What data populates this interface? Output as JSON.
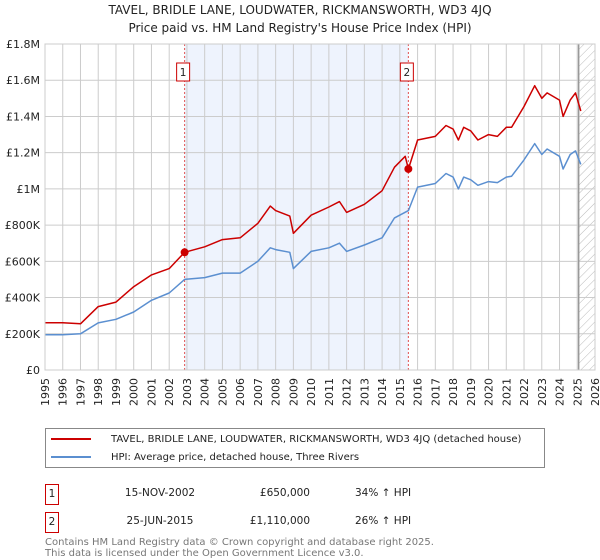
{
  "title": "TAVEL, BRIDLE LANE, LOUDWATER, RICKMANSWORTH, WD3 4JQ",
  "subtitle": "Price paid vs. HM Land Registry's House Price Index (HPI)",
  "colors": {
    "price": "#cc0000",
    "hpi": "#5b8fd0",
    "shade": "#eef3fd",
    "grid": "#cccccc"
  },
  "chart_data": {
    "type": "line",
    "xlim": [
      1995,
      2026
    ],
    "ylim": [
      0,
      1800000
    ],
    "y_ticks": [
      0,
      200000,
      400000,
      600000,
      800000,
      1000000,
      1200000,
      1400000,
      1600000,
      1800000
    ],
    "y_tick_labels": [
      "£0",
      "£200K",
      "£400K",
      "£600K",
      "£800K",
      "£1M",
      "£1.2M",
      "£1.4M",
      "£1.6M",
      "£1.8M"
    ],
    "x_tick_labels": [
      "1995",
      "1996",
      "1997",
      "1998",
      "1999",
      "2000",
      "2001",
      "2002",
      "2003",
      "2004",
      "2005",
      "2006",
      "2007",
      "2008",
      "2009",
      "2010",
      "2011",
      "2012",
      "2013",
      "2014",
      "2015",
      "2016",
      "2017",
      "2018",
      "2019",
      "2020",
      "2021",
      "2022",
      "2023",
      "2024",
      "2025",
      "2026"
    ],
    "grid": true,
    "shaded_range": [
      2002.87,
      2015.48
    ],
    "hatched_from": 2025.08,
    "series": [
      {
        "name": "TAVEL, BRIDLE LANE, LOUDWATER, RICKMANSWORTH, WD3 4JQ (detached house)",
        "x": [
          1995,
          1996,
          1997,
          1998,
          1999,
          2000,
          2001,
          2002,
          2002.87,
          2004,
          2005,
          2006,
          2007,
          2007.7,
          2008,
          2008.8,
          2009,
          2010,
          2011,
          2011.6,
          2012,
          2013,
          2014,
          2014.7,
          2015.3,
          2015.48,
          2016,
          2017,
          2017.6,
          2018,
          2018.3,
          2018.6,
          2019,
          2019.4,
          2020,
          2020.5,
          2021,
          2021.3,
          2022,
          2022.6,
          2023,
          2023.3,
          2024,
          2024.2,
          2024.6,
          2024.9,
          2025.2
        ],
        "values": [
          261000,
          261000,
          255000,
          350000,
          375000,
          460000,
          525000,
          560000,
          650000,
          680000,
          720000,
          730000,
          810000,
          905000,
          880000,
          850000,
          755000,
          855000,
          900000,
          930000,
          870000,
          915000,
          990000,
          1120000,
          1180000,
          1110000,
          1270000,
          1290000,
          1350000,
          1330000,
          1270000,
          1340000,
          1320000,
          1270000,
          1300000,
          1290000,
          1340000,
          1340000,
          1455000,
          1570000,
          1500000,
          1530000,
          1490000,
          1400000,
          1490000,
          1530000,
          1430000
        ]
      },
      {
        "name": "HPI: Average price, detached house, Three Rivers",
        "x": [
          1995,
          1996,
          1997,
          1998,
          1999,
          2000,
          2001,
          2002,
          2002.87,
          2004,
          2005,
          2006,
          2007,
          2007.7,
          2008,
          2008.8,
          2009,
          2010,
          2011,
          2011.6,
          2012,
          2013,
          2014,
          2014.7,
          2015.48,
          2016,
          2017,
          2017.6,
          2018,
          2018.3,
          2018.6,
          2019,
          2019.4,
          2020,
          2020.5,
          2021,
          2021.3,
          2022,
          2022.6,
          2023,
          2023.3,
          2024,
          2024.2,
          2024.6,
          2024.9,
          2025.2
        ],
        "values": [
          195000,
          195000,
          200000,
          260000,
          280000,
          320000,
          385000,
          425000,
          500000,
          510000,
          535000,
          535000,
          600000,
          675000,
          665000,
          650000,
          560000,
          655000,
          675000,
          700000,
          655000,
          690000,
          730000,
          840000,
          880000,
          1010000,
          1030000,
          1085000,
          1065000,
          1000000,
          1065000,
          1050000,
          1020000,
          1040000,
          1035000,
          1065000,
          1070000,
          1160000,
          1250000,
          1190000,
          1220000,
          1180000,
          1110000,
          1190000,
          1210000,
          1135000
        ]
      }
    ],
    "sales": [
      {
        "label": "1",
        "x": 2002.87,
        "value": 650000
      },
      {
        "label": "2",
        "x": 2015.48,
        "value": 1110000
      }
    ]
  },
  "legend": {
    "price_label": "TAVEL, BRIDLE LANE, LOUDWATER, RICKMANSWORTH, WD3 4JQ (detached house)",
    "hpi_label": "HPI: Average price, detached house, Three Rivers"
  },
  "transactions": [
    {
      "num": "1",
      "date": "15-NOV-2002",
      "price": "£650,000",
      "hpi": "34% ↑ HPI"
    },
    {
      "num": "2",
      "date": "25-JUN-2015",
      "price": "£1,110,000",
      "hpi": "26% ↑ HPI"
    }
  ],
  "footer": {
    "line1": "Contains HM Land Registry data © Crown copyright and database right 2025.",
    "line2": "This data is licensed under the Open Government Licence v3.0."
  }
}
